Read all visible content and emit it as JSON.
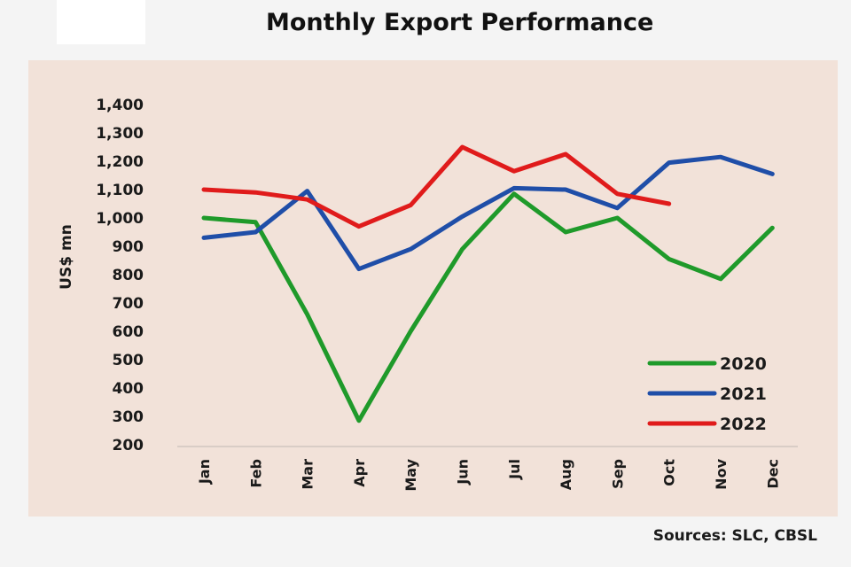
{
  "chart_data": {
    "type": "line",
    "title": "Monthly Export Performance",
    "xlabel": "",
    "ylabel": "US$ mn",
    "ylim": [
      200,
      1400
    ],
    "yticks": [
      "1,400",
      "1,300",
      "1,200",
      "1,100",
      "1,000",
      "900",
      "800",
      "700",
      "600",
      "500",
      "400",
      "300",
      "200"
    ],
    "categories": [
      "Jan",
      "Feb",
      "Mar",
      "Apr",
      "May",
      "Jun",
      "Jul",
      "Aug",
      "Sep",
      "Oct",
      "Nov",
      "Dec"
    ],
    "series": [
      {
        "name": "2020",
        "color": "#1f9a2a",
        "values": [
          1000,
          985,
          660,
          285,
          600,
          890,
          1085,
          950,
          1000,
          855,
          785,
          965
        ]
      },
      {
        "name": "2021",
        "color": "#1f4ea8",
        "values": [
          930,
          950,
          1095,
          820,
          890,
          1005,
          1105,
          1100,
          1035,
          1195,
          1215,
          1155
        ]
      },
      {
        "name": "2022",
        "color": "#e01b1b",
        "values": [
          1100,
          1090,
          1065,
          970,
          1045,
          1250,
          1165,
          1225,
          1085,
          1050
        ]
      }
    ],
    "grid": false,
    "legend_position": "lower right",
    "source": "Sources: SLC, CBSL"
  }
}
